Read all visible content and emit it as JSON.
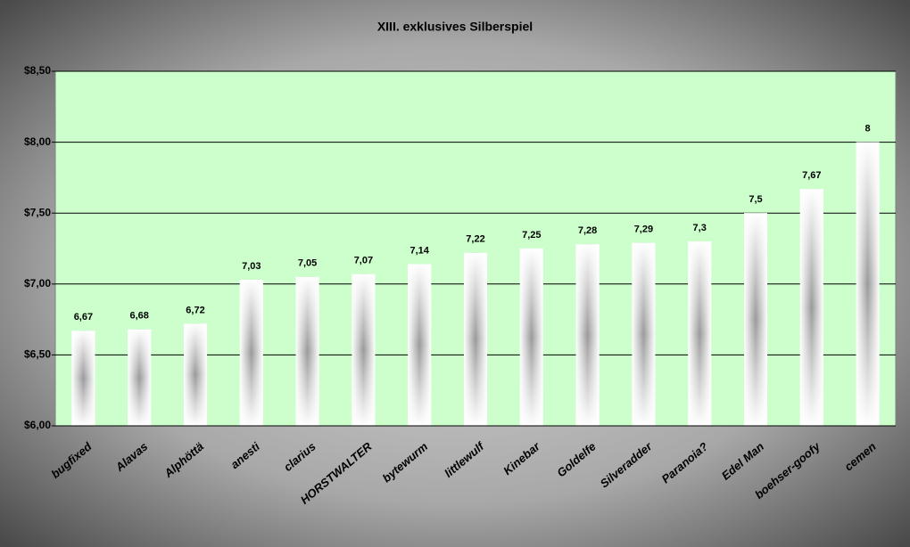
{
  "chart_data": {
    "type": "bar",
    "title": "XIII. exklusives Silberspiel",
    "categories": [
      "bugfixed",
      "Alavas",
      "Alphöttä",
      "anesti",
      "clarius",
      "HORSTWALTER",
      "bytewurm",
      "littlewulf",
      "Kinebar",
      "Goldelfe",
      "Silveradder",
      "Paranoia?",
      "Edel Man",
      "boehser-goofy",
      "cemen"
    ],
    "values": [
      6.67,
      6.68,
      6.72,
      7.03,
      7.05,
      7.07,
      7.14,
      7.22,
      7.25,
      7.28,
      7.29,
      7.3,
      7.5,
      7.67,
      8
    ],
    "value_labels": [
      "6,67",
      "6,68",
      "6,72",
      "7,03",
      "7,05",
      "7,07",
      "7,14",
      "7,22",
      "7,25",
      "7,28",
      "7,29",
      "7,3",
      "7,5",
      "7,67",
      "8"
    ],
    "ylim": [
      6,
      8.5
    ],
    "yticks": [
      {
        "value": 6,
        "label": "$6,00"
      },
      {
        "value": 6.5,
        "label": "$6,50"
      },
      {
        "value": 7,
        "label": "$7,00"
      },
      {
        "value": 7.5,
        "label": "$7,50"
      },
      {
        "value": 8,
        "label": "$8,00"
      },
      {
        "value": 8.5,
        "label": "$8,50"
      }
    ],
    "grid": true,
    "plot_background": "#ccffcc"
  }
}
